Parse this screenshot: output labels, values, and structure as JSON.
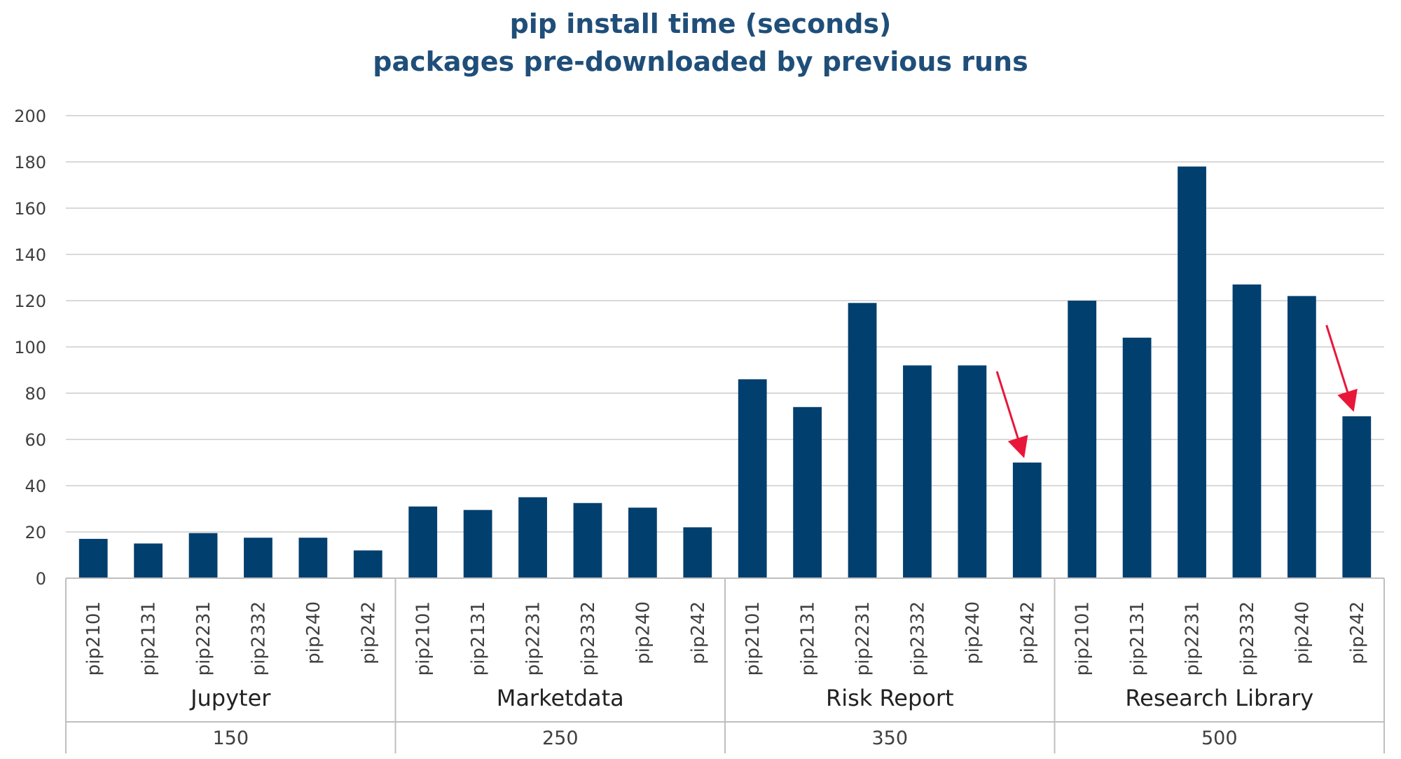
{
  "chart_data": {
    "type": "bar",
    "title": "pip install time (seconds)",
    "subtitle": "packages pre-downloaded by previous runs",
    "xlabel": "",
    "ylabel": "",
    "ylim": [
      0,
      200
    ],
    "yticks": [
      "0",
      "20",
      "40",
      "60",
      "80",
      "100",
      "120",
      "140",
      "160",
      "180",
      "200"
    ],
    "grid": true,
    "bar_color": "#003f6e",
    "gridline_color": "#d9d9d9",
    "axis_line_color": "#bfbfbf",
    "annotation_color": "#e8173a",
    "annotations": [
      {
        "type": "arrow",
        "to_group": 2,
        "to_index": 5
      },
      {
        "type": "arrow",
        "to_group": 3,
        "to_index": 5
      }
    ],
    "groups": [
      {
        "name": "Jupyter",
        "sublabel": "150",
        "categories": [
          "pip2101",
          "pip2131",
          "pip2231",
          "pip2332",
          "pip240",
          "pip242"
        ],
        "values": [
          17,
          15,
          19.5,
          17.5,
          17.5,
          12
        ]
      },
      {
        "name": "Marketdata",
        "sublabel": "250",
        "categories": [
          "pip2101",
          "pip2131",
          "pip2231",
          "pip2332",
          "pip240",
          "pip242"
        ],
        "values": [
          31,
          29.5,
          35,
          32.5,
          30.5,
          22
        ]
      },
      {
        "name": "Risk Report",
        "sublabel": "350",
        "categories": [
          "pip2101",
          "pip2131",
          "pip2231",
          "pip2332",
          "pip240",
          "pip242"
        ],
        "values": [
          86,
          74,
          119,
          92,
          92,
          50
        ]
      },
      {
        "name": "Research Library",
        "sublabel": "500",
        "categories": [
          "pip2101",
          "pip2131",
          "pip2231",
          "pip2332",
          "pip240",
          "pip242"
        ],
        "values": [
          120,
          104,
          178,
          127,
          122,
          70
        ]
      }
    ]
  }
}
